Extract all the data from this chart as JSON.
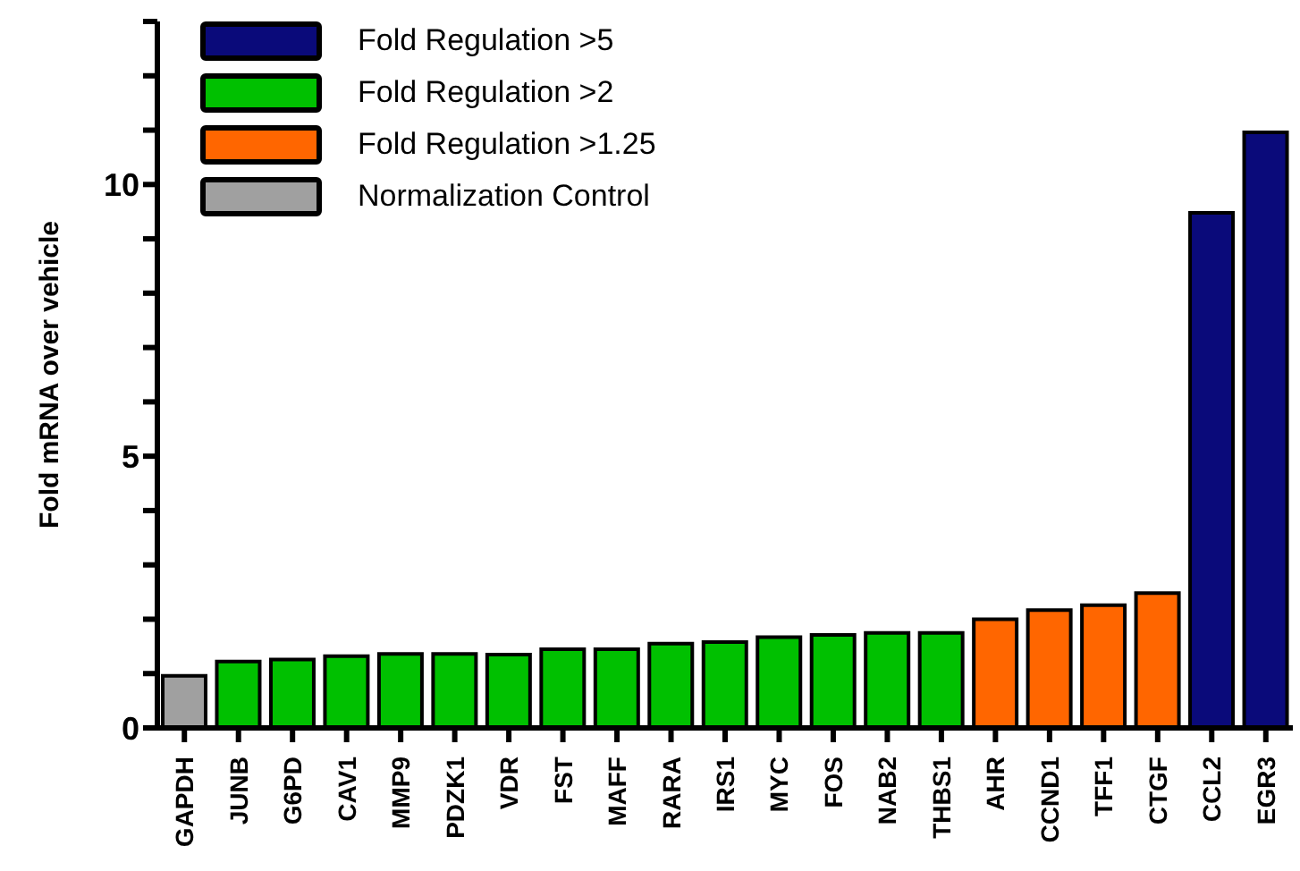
{
  "chart_data": {
    "type": "bar",
    "ylabel": "Fold mRNA over vehicle",
    "categories": [
      "GAPDH",
      "JUNB",
      "G6PD",
      "CAV1",
      "MMP9",
      "PDZK1",
      "VDR",
      "FST",
      "MAFF",
      "RARA",
      "IRS1",
      "MYC",
      "FOS",
      "NAB2",
      "THBS1",
      "AHR",
      "CCND1",
      "TFF1",
      "CTGF",
      "CCL2",
      "EGR3"
    ],
    "stacked": true,
    "legend": "top left",
    "grid": false,
    "ylim": [
      0,
      13
    ],
    "yticks": [
      0,
      {
        "value": 1,
        "label": null
      },
      {
        "value": 2,
        "label": null
      },
      {
        "value": 3,
        "label": null
      },
      {
        "value": 4,
        "label": null
      },
      5,
      {
        "value": 6,
        "label": null
      },
      {
        "value": 7,
        "label": null
      },
      {
        "value": 8,
        "label": null
      },
      {
        "value": 9,
        "label": null
      },
      10,
      {
        "value": 11,
        "label": null
      },
      {
        "value": 12,
        "label": null
      },
      {
        "value": 13,
        "label": null
      }
    ],
    "series": [
      {
        "name": "Fold Regulation >5",
        "color": "#0a0a7a",
        "values": [
          null,
          null,
          null,
          null,
          null,
          null,
          null,
          null,
          null,
          null,
          null,
          null,
          null,
          null,
          null,
          null,
          null,
          null,
          null,
          9.48,
          10.96
        ]
      },
      {
        "name": "Fold Regulation >2",
        "color": "#00c000",
        "values": [
          null,
          1.22,
          1.26,
          1.32,
          1.36,
          1.36,
          1.35,
          1.45,
          1.45,
          1.55,
          1.58,
          1.67,
          1.71,
          1.75,
          1.75,
          null,
          null,
          null,
          null,
          null,
          null
        ]
      },
      {
        "name": "Fold Regulation >1.25",
        "color": "#ff6600",
        "values": [
          null,
          null,
          null,
          null,
          null,
          null,
          null,
          null,
          null,
          null,
          null,
          null,
          null,
          null,
          null,
          2.0,
          2.17,
          2.26,
          2.48,
          null,
          null
        ]
      },
      {
        "name": "Normalization Control",
        "color": "#a0a0a0",
        "values": [
          0.96,
          null,
          null,
          null,
          null,
          null,
          null,
          null,
          null,
          null,
          null,
          null,
          null,
          null,
          null,
          null,
          null,
          null,
          null,
          null,
          null
        ]
      }
    ]
  }
}
